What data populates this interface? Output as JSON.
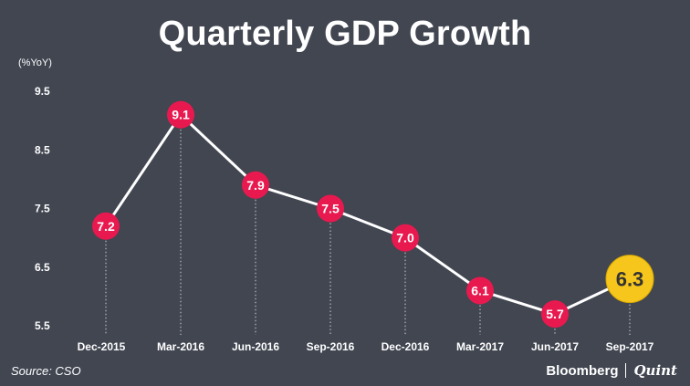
{
  "chart_data": {
    "type": "line",
    "title": "Quarterly GDP Growth",
    "ylabel": "(%YoY)",
    "xlabel": "",
    "categories": [
      "Dec-2015",
      "Mar-2016",
      "Jun-2016",
      "Sep-2016",
      "Dec-2016",
      "Mar-2017",
      "Jun-2017",
      "Sep-2017"
    ],
    "values": [
      7.2,
      9.1,
      7.9,
      7.5,
      7.0,
      6.1,
      5.7,
      6.3
    ],
    "value_labels": [
      "7.2",
      "9.1",
      "7.9",
      "7.5",
      "7.0",
      "6.1",
      "5.7",
      "6.3"
    ],
    "ylim": [
      5.5,
      9.5
    ],
    "yticks": [
      9.5,
      8.5,
      7.5,
      6.5,
      5.5
    ],
    "ytick_labels": [
      "9.5",
      "8.5",
      "7.5",
      "6.5",
      "5.5"
    ],
    "grid": false,
    "highlight_index": 7,
    "colors": {
      "background": "#414651",
      "line": "#ffffff",
      "marker": "#e8194f",
      "highlight": "#f7c61c",
      "highlight_text": "#333333",
      "text": "#ffffff"
    }
  },
  "footer": {
    "source": "Source: CSO",
    "brand_primary": "Bloomberg",
    "brand_secondary": "Quint"
  }
}
